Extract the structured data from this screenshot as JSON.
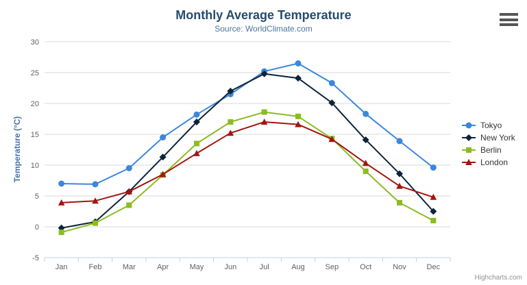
{
  "credits": {
    "label": "Highcharts.com"
  },
  "icons": {
    "menu": "hamburger-menu"
  },
  "chart_data": {
    "type": "line",
    "title": "Monthly Average Temperature",
    "subtitle": "Source: WorldClimate.com",
    "xlabel": "",
    "ylabel": "Temperature (°C)",
    "ylim": [
      -5,
      30
    ],
    "ytick_step": 5,
    "grid": "horizontal",
    "legend_position": "right",
    "categories": [
      "Jan",
      "Feb",
      "Mar",
      "Apr",
      "May",
      "Jun",
      "Jul",
      "Aug",
      "Sep",
      "Oct",
      "Nov",
      "Dec"
    ],
    "series": [
      {
        "name": "Tokyo",
        "color": "#3a87dd",
        "marker": "circle",
        "values": [
          7.0,
          6.9,
          9.5,
          14.5,
          18.2,
          21.5,
          25.2,
          26.5,
          23.3,
          18.3,
          13.9,
          9.6
        ]
      },
      {
        "name": "New York",
        "color": "#0d233a",
        "marker": "diamond",
        "values": [
          -0.2,
          0.8,
          5.7,
          11.3,
          17.0,
          22.0,
          24.8,
          24.1,
          20.1,
          14.1,
          8.6,
          2.5
        ]
      },
      {
        "name": "Berlin",
        "color": "#8bbc21",
        "marker": "square",
        "values": [
          -0.9,
          0.6,
          3.5,
          8.4,
          13.5,
          17.0,
          18.6,
          17.9,
          14.3,
          9.0,
          3.9,
          1.0
        ]
      },
      {
        "name": "London",
        "color": "#a21510",
        "marker": "triangle",
        "values": [
          3.9,
          4.2,
          5.7,
          8.5,
          11.9,
          15.2,
          17.0,
          16.6,
          14.2,
          10.3,
          6.6,
          4.8
        ]
      }
    ],
    "axis_colors": {
      "grid": "#d8d8d8",
      "axis_line": "#c0d0e0",
      "tick_label": "#606060"
    }
  }
}
